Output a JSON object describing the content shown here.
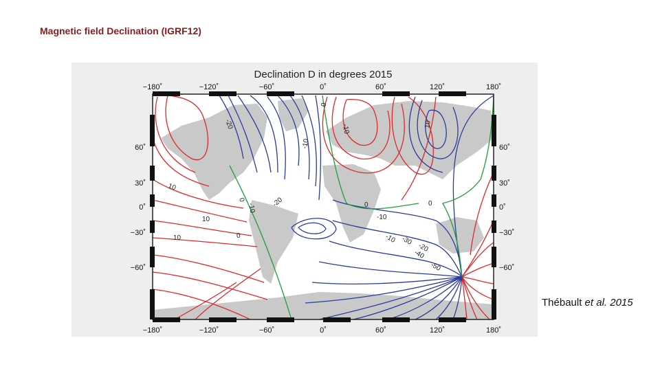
{
  "slide": {
    "title": "Magnetic field Declination (IGRF12)",
    "citation_author": "Thébault",
    "citation_etal": "et al.",
    "citation_year": "2015"
  },
  "map": {
    "title": "Declination D in degrees 2015",
    "lon_ticks": [
      "−180˚",
      "−120˚",
      "−60˚",
      "0˚",
      "60˚",
      "120˚",
      "180˚"
    ],
    "lat_ticks": [
      "60˚",
      "30˚",
      "0˚",
      "−30˚",
      "−60˚"
    ],
    "contour_labels": [
      "-20",
      "0",
      "10",
      "-10",
      "-10",
      "0",
      "10",
      "-10",
      "10",
      "0",
      "-10",
      "-20",
      "0",
      "0",
      "10",
      "20",
      "-10",
      "-30",
      "-20",
      "-40",
      "-50"
    ],
    "colors": {
      "positive": "#e0282a",
      "negative": "#2a3a9c",
      "zero": "#1e9e3a",
      "land": "#c9c9c9"
    }
  }
}
